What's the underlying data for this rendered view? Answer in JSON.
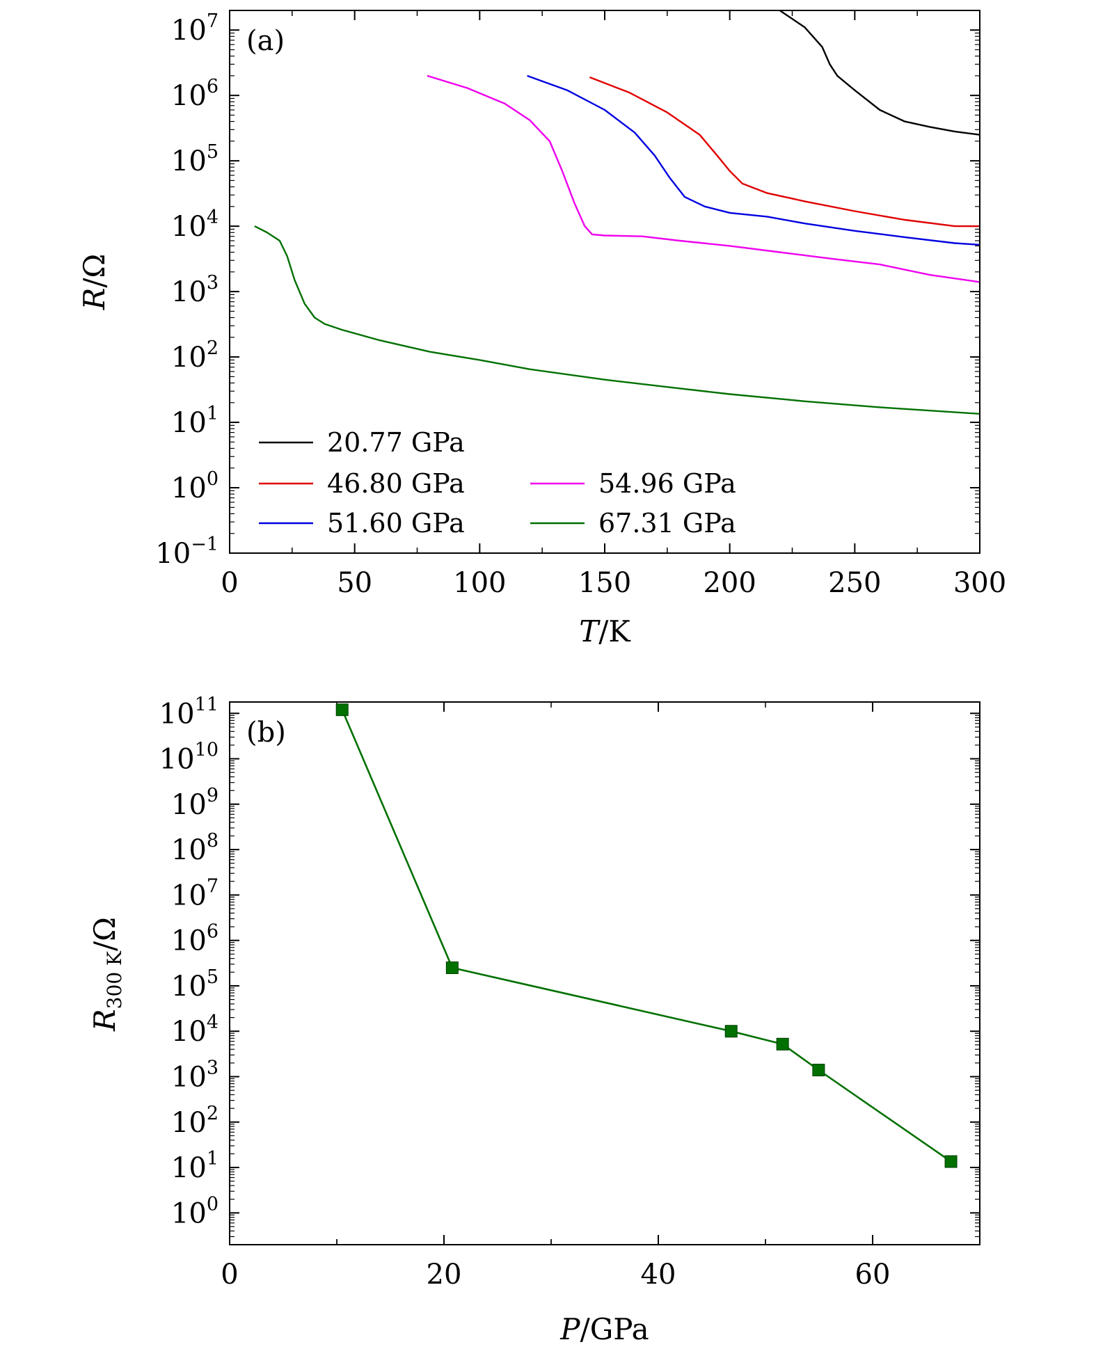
{
  "chart_data": [
    {
      "panel_label": "(a)",
      "type": "line",
      "x_scale": "linear",
      "y_scale": "log",
      "xlabel": {
        "var": "T",
        "sep": "/",
        "unit": "K"
      },
      "ylabel": {
        "var": "R",
        "sep": "/",
        "unit": "Ω"
      },
      "xlim": [
        0,
        300
      ],
      "ylim_exp": [
        -1,
        7.3
      ],
      "x_ticks": [
        0,
        50,
        100,
        150,
        200,
        250,
        300
      ],
      "x_tick_labels": [
        "0",
        "50",
        "100",
        "150",
        "200",
        "250",
        "300"
      ],
      "y_ticks_exp": [
        -1,
        0,
        1,
        2,
        3,
        4,
        5,
        6,
        7
      ],
      "y_tick_base": "10",
      "y_tick_exponents": [
        "−1",
        "0",
        "1",
        "2",
        "3",
        "4",
        "5",
        "6",
        "7"
      ],
      "legend_position": "bottom-left",
      "series": [
        {
          "name": "20.77 GPa",
          "color": "#000000",
          "points": [
            [
              220,
              20000000.0
            ],
            [
              230,
              11000000.0
            ],
            [
              237,
              5500000.0
            ],
            [
              240,
              3000000.0
            ],
            [
              243,
              2000000.0
            ],
            [
              250,
              1200000.0
            ],
            [
              260,
              600000.0
            ],
            [
              270,
              400000.0
            ],
            [
              280,
              330000.0
            ],
            [
              290,
              280000.0
            ],
            [
              300,
              250000.0
            ]
          ]
        },
        {
          "name": "46.80 GPa",
          "color": "#e00000",
          "points": [
            [
              144,
              1900000.0
            ],
            [
              160,
              1100000.0
            ],
            [
              175,
              550000.0
            ],
            [
              188,
              250000.0
            ],
            [
              195,
              120000.0
            ],
            [
              200,
              70000.0
            ],
            [
              205,
              45000.0
            ],
            [
              215,
              32000.0
            ],
            [
              230,
              24000.0
            ],
            [
              250,
              17000.0
            ],
            [
              270,
              12500.0
            ],
            [
              290,
              10000.0
            ],
            [
              300,
              10000.0
            ]
          ]
        },
        {
          "name": "51.60 GPa",
          "color": "#0000e0",
          "points": [
            [
              119,
              2000000.0
            ],
            [
              135,
              1200000.0
            ],
            [
              150,
              600000.0
            ],
            [
              162,
              270000.0
            ],
            [
              170,
              120000.0
            ],
            [
              176,
              55000.0
            ],
            [
              182,
              28000.0
            ],
            [
              190,
              20000.0
            ],
            [
              200,
              16000.0
            ],
            [
              215,
              14000.0
            ],
            [
              230,
              11000.0
            ],
            [
              250,
              8500.0
            ],
            [
              270,
              6800.0
            ],
            [
              290,
              5500.0
            ],
            [
              300,
              5200.0
            ]
          ]
        },
        {
          "name": "54.96 GPa",
          "color": "#ee00ee",
          "points": [
            [
              79,
              2000000.0
            ],
            [
              95,
              1300000.0
            ],
            [
              110,
              750000.0
            ],
            [
              120,
              420000.0
            ],
            [
              128,
              200000.0
            ],
            [
              133,
              70000.0
            ],
            [
              138,
              22000.0
            ],
            [
              142,
              10000.0
            ],
            [
              145,
              7500.0
            ],
            [
              150,
              7200.0
            ],
            [
              165,
              7000.0
            ],
            [
              180,
              6000.0
            ],
            [
              200,
              5000.0
            ],
            [
              220,
              4000.0
            ],
            [
              240,
              3200.0
            ],
            [
              260,
              2600.0
            ],
            [
              280,
              1800.0
            ],
            [
              300,
              1400.0
            ]
          ]
        },
        {
          "name": "67.31 GPa",
          "color": "#007000",
          "points": [
            [
              10,
              10000.0
            ],
            [
              15,
              8000.0
            ],
            [
              20,
              6000.0
            ],
            [
              23,
              3500.0
            ],
            [
              26,
              1500.0
            ],
            [
              30,
              650.0
            ],
            [
              34,
              400.0
            ],
            [
              38,
              320.0
            ],
            [
              45,
              260.0
            ],
            [
              60,
              180.0
            ],
            [
              80,
              120.0
            ],
            [
              100,
              90
            ],
            [
              120,
              65
            ],
            [
              150,
              45
            ],
            [
              180,
              33
            ],
            [
              200,
              27
            ],
            [
              230,
              21
            ],
            [
              260,
              17
            ],
            [
              300,
              13.5
            ]
          ]
        }
      ]
    },
    {
      "panel_label": "(b)",
      "type": "line",
      "x_scale": "linear",
      "y_scale": "log",
      "xlabel": {
        "var": "P",
        "sep": "/",
        "unit": "GPa"
      },
      "ylabel": {
        "var": "R",
        "sub": "300 K",
        "sep": "/",
        "unit": "Ω"
      },
      "xlim": [
        0,
        70
      ],
      "ylim_exp": [
        -0.7,
        11.25
      ],
      "x_ticks": [
        0,
        20,
        40,
        60
      ],
      "x_tick_labels": [
        "0",
        "20",
        "40",
        "60"
      ],
      "y_ticks_exp": [
        0,
        1,
        2,
        3,
        4,
        5,
        6,
        7,
        8,
        9,
        10,
        11
      ],
      "y_tick_base": "10",
      "y_tick_exponents": [
        "0",
        "1",
        "2",
        "3",
        "4",
        "5",
        "6",
        "7",
        "8",
        "9",
        "10",
        "11"
      ],
      "color": "#007000",
      "marker": "square",
      "x": [
        10.5,
        20.77,
        46.8,
        51.6,
        54.96,
        67.31
      ],
      "y": [
        120000000000.0,
        250000.0,
        10000.0,
        5200.0,
        1400.0,
        13.5
      ]
    }
  ]
}
